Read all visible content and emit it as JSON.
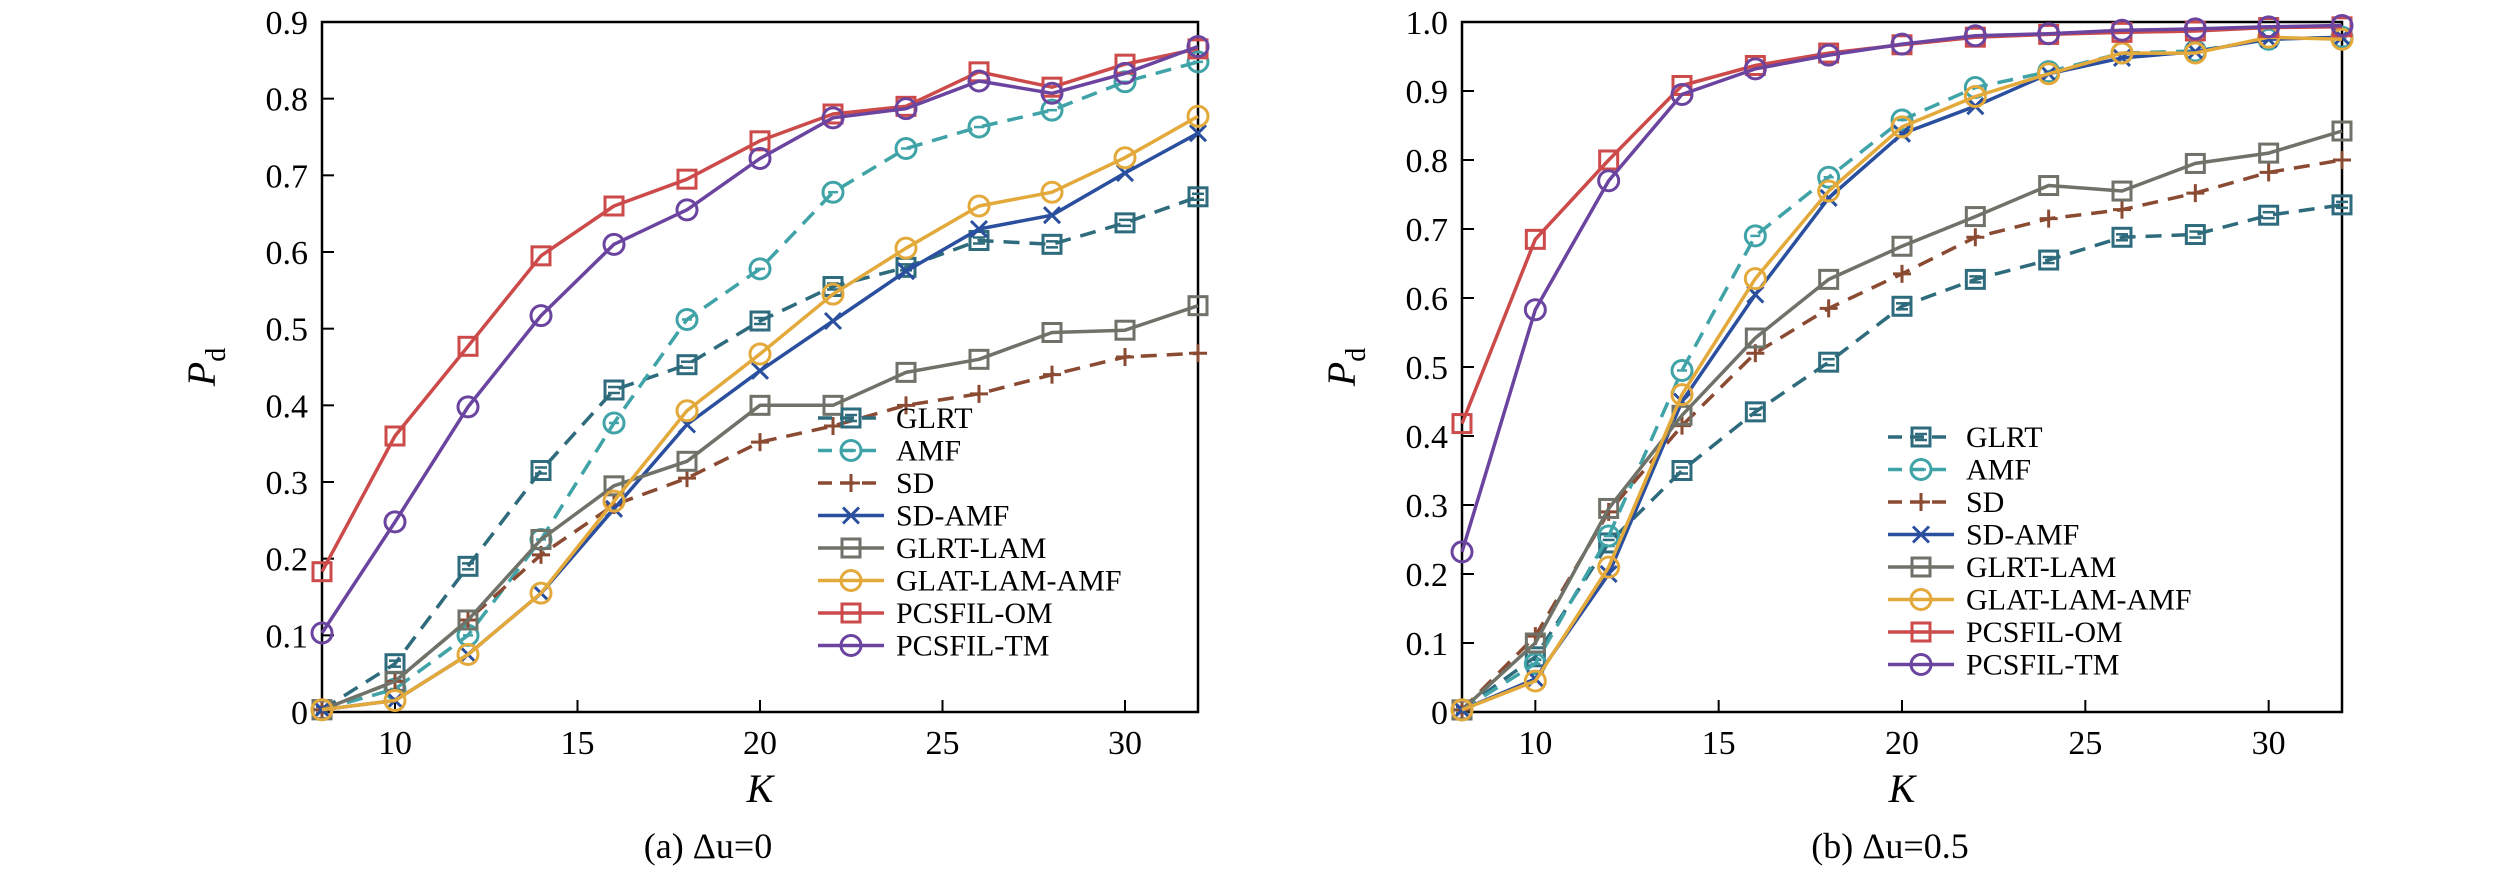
{
  "figure": {
    "panel_a_caption": "(a) Δu=0",
    "panel_b_caption": "(b) Δu=0.5"
  },
  "chart_data": [
    {
      "type": "line",
      "caption": "(a) Δu=0",
      "xlabel": "K",
      "ylabel": "Pd",
      "xlim": [
        8,
        32
      ],
      "ylim": [
        0,
        0.9
      ],
      "x_ticks": [
        10,
        15,
        20,
        25,
        30
      ],
      "y_ticks": [
        0,
        0.1,
        0.2,
        0.3,
        0.4,
        0.5,
        0.6,
        0.7,
        0.8,
        0.9
      ],
      "y_tick_labels": [
        "0",
        "0.1",
        "0.2",
        "0.3",
        "0.4",
        "0.5",
        "0.6",
        "0.7",
        "0.8",
        "0.9"
      ],
      "grid": false,
      "legend_position": "bottom-right",
      "x": [
        8,
        10,
        12,
        14,
        16,
        18,
        20,
        22,
        24,
        26,
        28,
        30,
        32
      ],
      "series": [
        {
          "name": "GLRT",
          "color": "#2e6b7c",
          "dash": true,
          "marker": "square-x",
          "values": [
            0.003,
            0.063,
            0.19,
            0.315,
            0.42,
            0.453,
            0.51,
            0.555,
            0.58,
            0.615,
            0.61,
            0.638,
            0.672
          ]
        },
        {
          "name": "AMF",
          "color": "#3fa3a8",
          "dash": true,
          "marker": "circle-dash",
          "values": [
            0.003,
            0.03,
            0.1,
            0.225,
            0.377,
            0.512,
            0.578,
            0.678,
            0.735,
            0.763,
            0.785,
            0.822,
            0.848
          ]
        },
        {
          "name": "SD",
          "color": "#8b4a32",
          "dash": true,
          "marker": "plus",
          "values": [
            0.003,
            0.04,
            0.12,
            0.205,
            0.27,
            0.305,
            0.352,
            0.373,
            0.4,
            0.415,
            0.44,
            0.463,
            0.468
          ]
        },
        {
          "name": "SD-AMF",
          "color": "#2a4f9e",
          "dash": false,
          "marker": "x",
          "values": [
            0.003,
            0.015,
            0.075,
            0.155,
            0.265,
            0.375,
            0.445,
            0.51,
            0.575,
            0.63,
            0.648,
            0.703,
            0.755
          ]
        },
        {
          "name": "GLRT-LAM",
          "color": "#6f7268",
          "dash": false,
          "marker": "square",
          "values": [
            0.003,
            0.04,
            0.12,
            0.225,
            0.295,
            0.327,
            0.4,
            0.4,
            0.443,
            0.46,
            0.495,
            0.498,
            0.53
          ]
        },
        {
          "name": "GLAT-LAM-AMF",
          "color": "#e3a93b",
          "dash": false,
          "marker": "circle",
          "values": [
            0.003,
            0.015,
            0.075,
            0.155,
            0.275,
            0.393,
            0.467,
            0.545,
            0.605,
            0.66,
            0.678,
            0.723,
            0.777
          ]
        },
        {
          "name": "PCSFIL-OM",
          "color": "#cc4a4a",
          "dash": false,
          "marker": "square",
          "values": [
            0.183,
            0.36,
            0.477,
            0.595,
            0.66,
            0.695,
            0.745,
            0.78,
            0.79,
            0.835,
            0.815,
            0.845,
            0.865
          ]
        },
        {
          "name": "PCSFIL-TM",
          "color": "#6b44a0",
          "dash": false,
          "marker": "circle",
          "values": [
            0.103,
            0.248,
            0.398,
            0.517,
            0.61,
            0.655,
            0.722,
            0.775,
            0.787,
            0.823,
            0.807,
            0.833,
            0.868
          ]
        }
      ]
    },
    {
      "type": "line",
      "caption": "(b) Δu=0.5",
      "xlabel": "K",
      "ylabel": "Pd",
      "xlim": [
        8,
        32
      ],
      "ylim": [
        0,
        1.0
      ],
      "x_ticks": [
        10,
        15,
        20,
        25,
        30
      ],
      "y_ticks": [
        0,
        0.1,
        0.2,
        0.3,
        0.4,
        0.5,
        0.6,
        0.7,
        0.8,
        0.9,
        1.0
      ],
      "y_tick_labels": [
        "0",
        "0.1",
        "0.2",
        "0.3",
        "0.4",
        "0.5",
        "0.6",
        "0.7",
        "0.8",
        "0.9",
        "1.0"
      ],
      "grid": false,
      "legend_position": "bottom-right",
      "x": [
        8,
        10,
        12,
        14,
        16,
        18,
        20,
        22,
        24,
        26,
        28,
        30,
        32
      ],
      "series": [
        {
          "name": "GLRT",
          "color": "#2e6b7c",
          "dash": true,
          "marker": "square-x",
          "values": [
            0.003,
            0.08,
            0.245,
            0.35,
            0.435,
            0.507,
            0.588,
            0.627,
            0.655,
            0.688,
            0.692,
            0.72,
            0.735
          ]
        },
        {
          "name": "AMF",
          "color": "#3fa3a8",
          "dash": true,
          "marker": "circle-dash",
          "values": [
            0.003,
            0.07,
            0.255,
            0.495,
            0.69,
            0.775,
            0.858,
            0.905,
            0.928,
            0.955,
            0.958,
            0.975,
            0.978
          ]
        },
        {
          "name": "SD",
          "color": "#8b4a32",
          "dash": true,
          "marker": "plus",
          "values": [
            0.003,
            0.11,
            0.29,
            0.415,
            0.52,
            0.585,
            0.635,
            0.688,
            0.715,
            0.728,
            0.752,
            0.782,
            0.8
          ]
        },
        {
          "name": "SD-AMF",
          "color": "#2a4f9e",
          "dash": false,
          "marker": "x",
          "values": [
            0.003,
            0.048,
            0.2,
            0.45,
            0.605,
            0.745,
            0.838,
            0.878,
            0.925,
            0.948,
            0.957,
            0.975,
            0.978
          ]
        },
        {
          "name": "GLRT-LAM",
          "color": "#6f7268",
          "dash": false,
          "marker": "square",
          "values": [
            0.003,
            0.1,
            0.295,
            0.43,
            0.542,
            0.627,
            0.675,
            0.718,
            0.763,
            0.755,
            0.795,
            0.81,
            0.842
          ]
        },
        {
          "name": "GLAT-LAM-AMF",
          "color": "#e3a93b",
          "dash": false,
          "marker": "circle",
          "values": [
            0.003,
            0.045,
            0.21,
            0.46,
            0.628,
            0.755,
            0.848,
            0.892,
            0.925,
            0.955,
            0.955,
            0.978,
            0.975
          ]
        },
        {
          "name": "PCSFIL-OM",
          "color": "#cc4a4a",
          "dash": false,
          "marker": "square",
          "values": [
            0.418,
            0.685,
            0.8,
            0.908,
            0.937,
            0.955,
            0.967,
            0.978,
            0.982,
            0.985,
            0.987,
            0.992,
            0.993
          ]
        },
        {
          "name": "PCSFIL-TM",
          "color": "#6b44a0",
          "dash": false,
          "marker": "circle",
          "values": [
            0.232,
            0.583,
            0.77,
            0.895,
            0.932,
            0.952,
            0.968,
            0.98,
            0.983,
            0.988,
            0.99,
            0.993,
            0.995
          ]
        }
      ]
    }
  ]
}
